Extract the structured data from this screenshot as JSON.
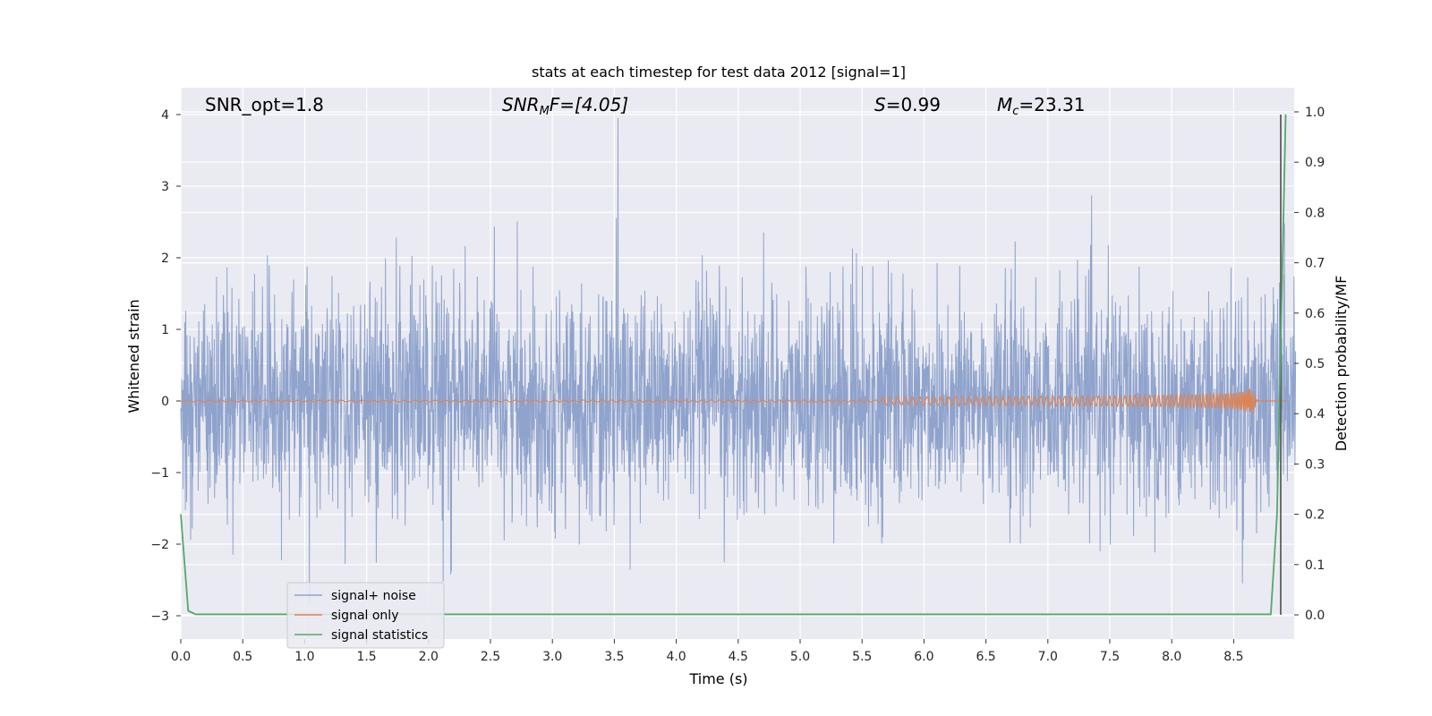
{
  "chart_data": {
    "type": "line",
    "title": "stats at each timestep for test data 2012 [signal=1]",
    "xlabel": "Time (s)",
    "ylabel": "Whitened strain",
    "ylabel_right": "Detection probability/MF",
    "xlim": [
      0.0,
      9.0
    ],
    "ylim": [
      -3.3,
      4.35
    ],
    "ylim_right": [
      -0.047,
      1.047
    ],
    "x_ticks": [
      "0.0",
      "0.5",
      "1.0",
      "1.5",
      "2.0",
      "2.5",
      "3.0",
      "3.5",
      "4.0",
      "4.5",
      "5.0",
      "5.5",
      "6.0",
      "6.5",
      "7.0",
      "7.5",
      "8.0",
      "8.5"
    ],
    "y_ticks": [
      "4",
      "3",
      "2",
      "1",
      "0",
      "−1",
      "−2",
      "−3"
    ],
    "y_right_ticks": [
      "1.0",
      "0.9",
      "0.8",
      "0.7",
      "0.6",
      "0.5",
      "0.4",
      "0.3",
      "0.2",
      "0.1",
      "0.0"
    ],
    "annotations": {
      "snr_opt": "SNR_opt=1.8",
      "snr_mf_base": "SNR",
      "snr_mf_sub": "M",
      "snr_mf_rest": "F=[4.05]",
      "s_var": "S",
      "s_rest": "=0.99",
      "mc_var": "M",
      "mc_sub": "c",
      "mc_rest": "=23.31"
    },
    "marker_time": 8.88,
    "colors": {
      "noise": "#8fa3cc",
      "signal": "#dd8452",
      "stats": "#55a868",
      "marker": "#4d4d4d",
      "bg": "#eaeaf2",
      "grid": "#ffffff"
    },
    "series": [
      {
        "name": "signal+ noise",
        "axis": "left",
        "description": "whitened noisy strain, approx. gaussian with sigma 0.75, peak 4.0 near t=3.53 s"
      },
      {
        "name": "signal only",
        "axis": "left",
        "description": "chirp near zero, growing to amplitude approx. 0.3 near t=8.65 s"
      },
      {
        "name": "signal statistics",
        "axis": "right",
        "x": [
          0.0,
          0.06,
          0.12,
          1.0,
          2.0,
          4.0,
          6.0,
          8.0,
          8.8,
          8.85,
          8.92
        ],
        "y": [
          0.2,
          0.008,
          0.001,
          0.001,
          0.001,
          0.001,
          0.001,
          0.001,
          0.001,
          0.2,
          0.995
        ]
      }
    ],
    "legend": {
      "placement": "lower-left"
    }
  }
}
